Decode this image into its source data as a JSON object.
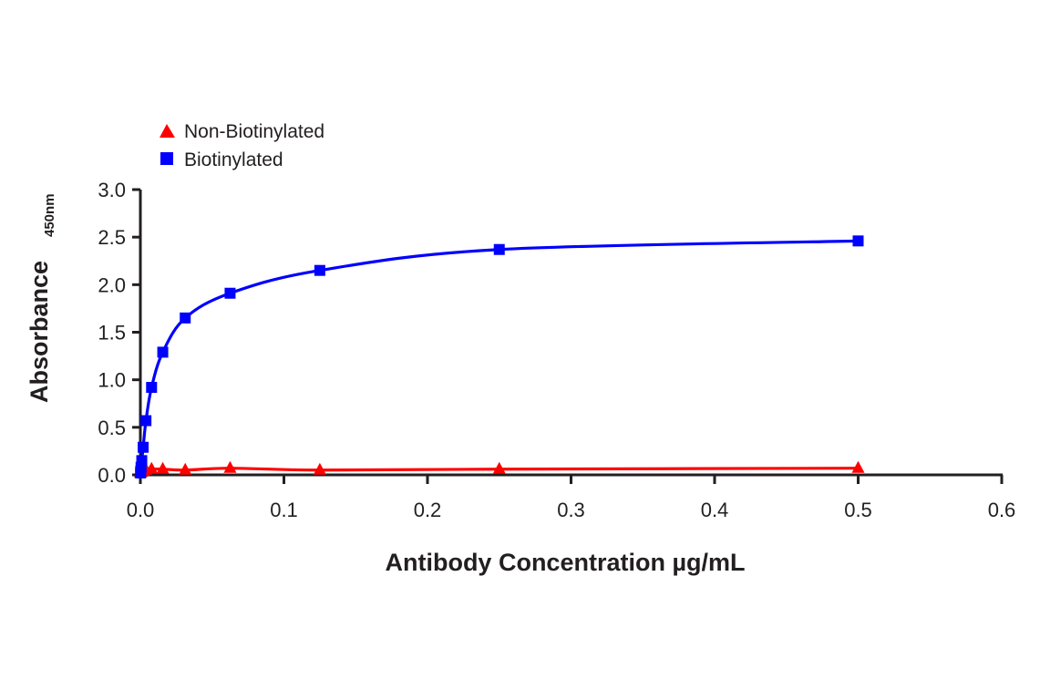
{
  "chart_data": {
    "type": "line",
    "title": "",
    "xlabel": "Antibody Concentration µg/mL",
    "ylabel": "Absorbance",
    "ylabel_subscript": "450nm",
    "xlim": [
      0,
      0.6
    ],
    "ylim": [
      0,
      3.0
    ],
    "x_ticks": [
      "0.0",
      "0.1",
      "0.2",
      "0.3",
      "0.4",
      "0.5",
      "0.6"
    ],
    "y_ticks": [
      "0.0",
      "0.5",
      "1.0",
      "1.5",
      "2.0",
      "2.5",
      "3.0"
    ],
    "grid": false,
    "legend_position": "top-left",
    "series": [
      {
        "name": "Non-Biotinylated",
        "color": "#ff0000",
        "marker": "triangle",
        "x": [
          0.000122,
          0.000244,
          0.000488,
          0.000977,
          0.00195,
          0.0039,
          0.0078,
          0.0156,
          0.03125,
          0.0625,
          0.125,
          0.25,
          0.5
        ],
        "values": [
          0.02,
          0.02,
          0.03,
          0.03,
          0.04,
          0.05,
          0.06,
          0.06,
          0.05,
          0.07,
          0.05,
          0.06,
          0.07
        ]
      },
      {
        "name": "Biotinylated",
        "color": "#0000ff",
        "marker": "square",
        "x": [
          0.000122,
          0.000244,
          0.000488,
          0.000977,
          0.00195,
          0.0039,
          0.0078,
          0.0156,
          0.03125,
          0.0625,
          0.125,
          0.25,
          0.5
        ],
        "values": [
          0.02,
          0.04,
          0.08,
          0.15,
          0.29,
          0.57,
          0.92,
          1.29,
          1.65,
          1.91,
          2.15,
          2.37,
          2.46
        ]
      }
    ]
  },
  "legend": {
    "items": [
      {
        "label": "Non-Biotinylated",
        "color": "#ff0000",
        "marker": "triangle"
      },
      {
        "label": "Biotinylated",
        "color": "#0000ff",
        "marker": "square"
      }
    ]
  },
  "axes": {
    "x_title": "Antibody Concentration µg/mL",
    "y_title": "Absorbance",
    "y_title_sub": "450nm"
  }
}
